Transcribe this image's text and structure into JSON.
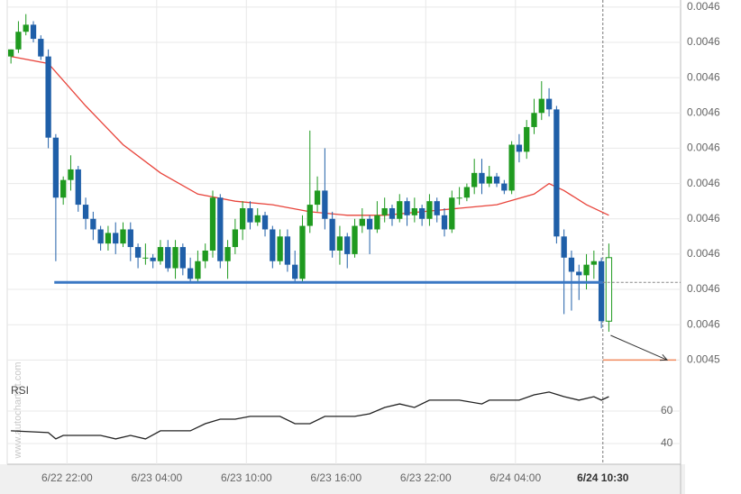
{
  "chart_data": {
    "type": "candlestick",
    "watermark": "www.autochartist.com",
    "rsi_label": "RSI",
    "up_color": "#1f9a1f",
    "down_color": "#1f5fa8",
    "hollow_last": true,
    "grid": true,
    "xlim": [
      -0.5,
      89.6
    ],
    "xticks": [
      {
        "value": 7.5,
        "label": "6/22 22:00"
      },
      {
        "value": 19.5,
        "label": "6/23 04:00"
      },
      {
        "value": 31.5,
        "label": "6/23 10:00"
      },
      {
        "value": 43.5,
        "label": "6/23 16:00"
      },
      {
        "value": 55.5,
        "label": "6/23 22:00"
      },
      {
        "value": 67.5,
        "label": "6/24 04:00"
      },
      {
        "value": 79.2,
        "label": "6/24 10:30"
      }
    ],
    "ylim": [
      0.004536,
      0.004642
    ],
    "yticks": [
      {
        "value": 0.00464,
        "label": "0.0046"
      },
      {
        "value": 0.00463,
        "label": "0.0046"
      },
      {
        "value": 0.00462,
        "label": "0.0046"
      },
      {
        "value": 0.00461,
        "label": "0.0046"
      },
      {
        "value": 0.0046,
        "label": "0.0046"
      },
      {
        "value": 0.00459,
        "label": "0.0046"
      },
      {
        "value": 0.00458,
        "label": "0.0046"
      },
      {
        "value": 0.00457,
        "label": "0.0046"
      },
      {
        "value": 0.00456,
        "label": "0.0046"
      },
      {
        "value": 0.00455,
        "label": "0.0046"
      },
      {
        "value": 0.00454,
        "label": "0.0045"
      }
    ],
    "ohlc": [
      [
        0.004626,
        0.004628,
        0.004624,
        0.004628
      ],
      [
        0.004628,
        0.004636,
        0.004627,
        0.004633
      ],
      [
        0.004633,
        0.004638,
        0.004632,
        0.004635
      ],
      [
        0.004635,
        0.004636,
        0.00463,
        0.004631
      ],
      [
        0.004631,
        0.004632,
        0.004625,
        0.004626
      ],
      [
        0.004626,
        0.004628,
        0.0046,
        0.004603
      ],
      [
        0.004603,
        0.004604,
        0.004568,
        0.004586
      ],
      [
        0.004586,
        0.004592,
        0.004584,
        0.004591
      ],
      [
        0.004591,
        0.004598,
        0.004588,
        0.004594
      ],
      [
        0.004594,
        0.004595,
        0.004582,
        0.004584
      ],
      [
        0.004584,
        0.004586,
        0.004577,
        0.00458
      ],
      [
        0.00458,
        0.004582,
        0.004574,
        0.004577
      ],
      [
        0.004577,
        0.004578,
        0.004571,
        0.004573
      ],
      [
        0.004573,
        0.004578,
        0.004571,
        0.004576
      ],
      [
        0.004576,
        0.004579,
        0.00457,
        0.004573
      ],
      [
        0.004573,
        0.004579,
        0.004572,
        0.004577
      ],
      [
        0.004577,
        0.004579,
        0.004568,
        0.004572
      ],
      [
        0.004572,
        0.004573,
        0.004566,
        0.004569
      ],
      [
        0.004569,
        0.004573,
        0.004567,
        0.004569
      ],
      [
        0.004569,
        0.00457,
        0.004566,
        0.004568
      ],
      [
        0.004568,
        0.004574,
        0.004567,
        0.004572
      ],
      [
        0.004572,
        0.004574,
        0.004565,
        0.004566
      ],
      [
        0.004566,
        0.004574,
        0.004563,
        0.004572
      ],
      [
        0.004572,
        0.004573,
        0.004564,
        0.004566
      ],
      [
        0.004566,
        0.004569,
        0.004562,
        0.004563
      ],
      [
        0.004563,
        0.004571,
        0.004562,
        0.004568
      ],
      [
        0.004568,
        0.004573,
        0.004566,
        0.004571
      ],
      [
        0.004571,
        0.004588,
        0.004569,
        0.004586
      ],
      [
        0.004586,
        0.004587,
        0.004566,
        0.004568
      ],
      [
        0.004568,
        0.004574,
        0.004563,
        0.004572
      ],
      [
        0.004572,
        0.00458,
        0.00457,
        0.004577
      ],
      [
        0.004577,
        0.004585,
        0.004574,
        0.004583
      ],
      [
        0.004583,
        0.004585,
        0.004577,
        0.004579
      ],
      [
        0.004579,
        0.004583,
        0.004578,
        0.004581
      ],
      [
        0.004581,
        0.004582,
        0.004575,
        0.004577
      ],
      [
        0.004577,
        0.004578,
        0.004566,
        0.004568
      ],
      [
        0.004568,
        0.004577,
        0.004567,
        0.004575
      ],
      [
        0.004575,
        0.004577,
        0.004565,
        0.004567
      ],
      [
        0.004567,
        0.004571,
        0.004562,
        0.004563
      ],
      [
        0.004563,
        0.004581,
        0.004562,
        0.004578
      ],
      [
        0.004578,
        0.004605,
        0.004576,
        0.004584
      ],
      [
        0.004584,
        0.004592,
        0.004582,
        0.004588
      ],
      [
        0.004588,
        0.0046,
        0.004577,
        0.00458
      ],
      [
        0.00458,
        0.004582,
        0.004569,
        0.004571
      ],
      [
        0.004571,
        0.004578,
        0.004567,
        0.004575
      ],
      [
        0.004575,
        0.004576,
        0.004566,
        0.00457
      ],
      [
        0.00457,
        0.00458,
        0.004569,
        0.004578
      ],
      [
        0.004578,
        0.004583,
        0.004576,
        0.00458
      ],
      [
        0.00458,
        0.004581,
        0.00457,
        0.004577
      ],
      [
        0.004577,
        0.004585,
        0.004576,
        0.004581
      ],
      [
        0.004581,
        0.004586,
        0.004579,
        0.004583
      ],
      [
        0.004583,
        0.004584,
        0.004578,
        0.00458
      ],
      [
        0.00458,
        0.004587,
        0.004579,
        0.004585
      ],
      [
        0.004585,
        0.004586,
        0.004578,
        0.004581
      ],
      [
        0.004581,
        0.004586,
        0.004579,
        0.004583
      ],
      [
        0.004583,
        0.004584,
        0.004578,
        0.00458
      ],
      [
        0.00458,
        0.004587,
        0.004578,
        0.004585
      ],
      [
        0.004585,
        0.004586,
        0.004579,
        0.004581
      ],
      [
        0.004581,
        0.004583,
        0.004575,
        0.004577
      ],
      [
        0.004577,
        0.004588,
        0.004576,
        0.004586
      ],
      [
        0.004586,
        0.004589,
        0.004584,
        0.004586
      ],
      [
        0.004586,
        0.00459,
        0.004585,
        0.004589
      ],
      [
        0.004589,
        0.004597,
        0.004587,
        0.004593
      ],
      [
        0.004593,
        0.004597,
        0.004587,
        0.00459
      ],
      [
        0.00459,
        0.004595,
        0.004589,
        0.004592
      ],
      [
        0.004592,
        0.004593,
        0.004589,
        0.00459
      ],
      [
        0.00459,
        0.004591,
        0.004587,
        0.004588
      ],
      [
        0.004588,
        0.004602,
        0.004587,
        0.004601
      ],
      [
        0.004601,
        0.004604,
        0.004596,
        0.004599
      ],
      [
        0.004599,
        0.004608,
        0.004597,
        0.004606
      ],
      [
        0.004606,
        0.004614,
        0.004604,
        0.00461
      ],
      [
        0.00461,
        0.004619,
        0.004608,
        0.004614
      ],
      [
        0.004614,
        0.004617,
        0.004609,
        0.004611
      ],
      [
        0.004611,
        0.004612,
        0.004573,
        0.004575
      ],
      [
        0.004575,
        0.004577,
        0.004553,
        0.004569
      ],
      [
        0.004569,
        0.004571,
        0.004554,
        0.004565
      ],
      [
        0.004565,
        0.004567,
        0.004557,
        0.004564
      ],
      [
        0.004564,
        0.00457,
        0.00456,
        0.004567
      ],
      [
        0.004567,
        0.004571,
        0.004563,
        0.004568
      ],
      [
        0.004568,
        0.004569,
        0.004549,
        0.004551
      ],
      [
        0.004551,
        0.004573,
        0.004548,
        0.004569
      ]
    ],
    "ma": {
      "color": "#e8433a",
      "x": [
        0,
        5,
        10,
        15,
        20,
        25,
        30,
        35,
        40,
        45,
        50,
        55,
        60,
        65,
        70,
        72,
        74,
        77,
        80
      ],
      "values": [
        0.004626,
        0.004624,
        0.004612,
        0.004601,
        0.004593,
        0.004587,
        0.004585,
        0.004584,
        0.004582,
        0.004581,
        0.004581,
        0.004582,
        0.004583,
        0.004584,
        0.004587,
        0.00459,
        0.004588,
        0.004584,
        0.004581
      ]
    },
    "support": {
      "color": "#3b78c4",
      "x": [
        5.8,
        79.2
      ],
      "value": 0.004562
    },
    "target": {
      "color": "#f08a5d",
      "x": [
        79.2,
        89
      ],
      "value": 0.00454
    },
    "rsi": {
      "ylim": [
        27.2,
        80
      ],
      "yticks": [
        40,
        60
      ],
      "color": "#222",
      "x": [
        0,
        5,
        6,
        7,
        12,
        14,
        16,
        18,
        20,
        24,
        26,
        28,
        30,
        32,
        36,
        38,
        40,
        42,
        46,
        48,
        50,
        52,
        54,
        56,
        60,
        63,
        64,
        68,
        70,
        72,
        74,
        76,
        78,
        79,
        80
      ],
      "values": [
        47.8,
        46.7,
        42.8,
        45,
        45,
        42.8,
        45,
        42.8,
        47.8,
        47.8,
        52.2,
        55,
        55,
        56.7,
        56.7,
        52.2,
        52.2,
        56.7,
        56.7,
        58.3,
        62.2,
        64.4,
        62.2,
        66.7,
        66.7,
        64.4,
        66.7,
        66.7,
        70,
        71.7,
        68.9,
        66.7,
        68.9,
        66.7,
        68.9
      ]
    }
  }
}
